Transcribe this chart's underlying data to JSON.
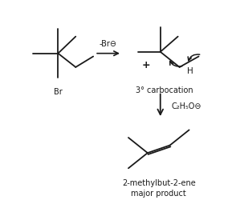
{
  "bg_color": "#ffffff",
  "line_color": "#1a1a1a",
  "text_color": "#1a1a1a",
  "figsize": [
    2.94,
    2.51
  ],
  "dpi": 100,
  "label_br_minus": "-Br⊖",
  "label_carbocation": "3° carbocation",
  "label_base": "C₂H₅O⊖",
  "label_product": "2-methylbut-2-ene\nmajor product",
  "font_size_label": 7.0,
  "font_size_product": 7.0
}
